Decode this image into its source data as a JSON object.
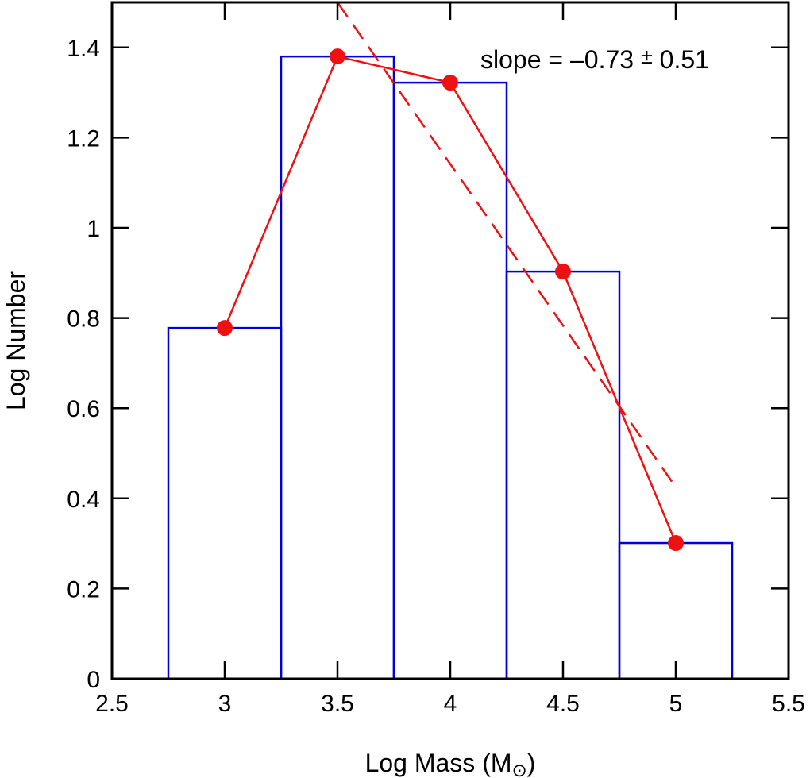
{
  "chart_data": {
    "type": "bar",
    "title": "",
    "xlabel": "Log Mass (M",
    "xlabel_sub": "⊙",
    "xlabel_close": ")",
    "ylabel": "Log Number",
    "xlim": [
      2.5,
      5.5
    ],
    "ylim": [
      0,
      1.5
    ],
    "xticks": [
      2.5,
      3,
      3.5,
      4,
      4.5,
      5,
      5.5
    ],
    "xtick_labels": [
      "2.5",
      "3",
      "3.5",
      "4",
      "4.5",
      "5",
      "5.5"
    ],
    "yticks": [
      0,
      0.2,
      0.4,
      0.6,
      0.8,
      1.0,
      1.2,
      1.4
    ],
    "ytick_labels": [
      "0",
      "0.2",
      "0.4",
      "0.6",
      "0.8",
      "1",
      "1.2",
      "1.4"
    ],
    "histogram": {
      "bin_edges": [
        2.75,
        3.25,
        3.75,
        4.25,
        4.75,
        5.25
      ],
      "values": [
        0.778,
        1.38,
        1.322,
        0.903,
        0.301
      ],
      "color": "#0000dd"
    },
    "points": {
      "x": [
        3.0,
        3.5,
        4.0,
        4.5,
        5.0
      ],
      "y": [
        0.778,
        1.38,
        1.322,
        0.903,
        0.301
      ],
      "color": "#ee1111"
    },
    "fit_line": {
      "x": [
        3.5,
        5.0
      ],
      "y": [
        1.5,
        0.425
      ],
      "style": "dashed",
      "color": "#ee1111"
    },
    "annotation": {
      "prefix": "slope = –0.73 ",
      "pm": "±",
      "suffix": " 0.51"
    }
  }
}
